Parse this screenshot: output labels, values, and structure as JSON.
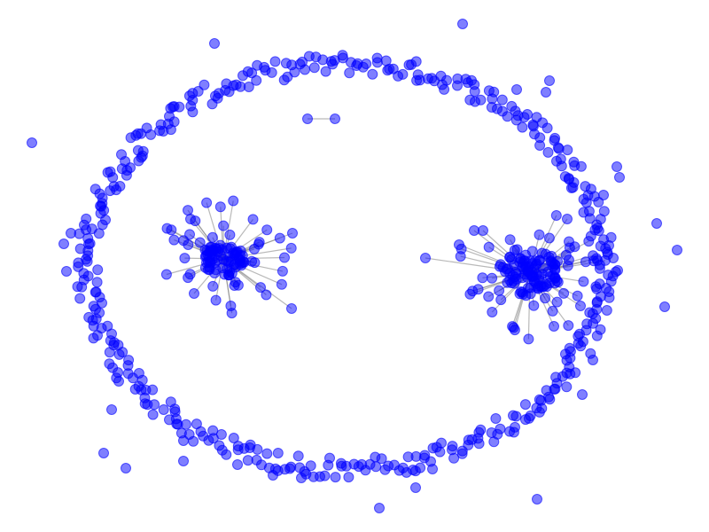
{
  "figure": {
    "type": "network-graph",
    "background": "#ffffff",
    "node_color": "#0000ff",
    "edge_color": "#808080",
    "clusters": [
      {
        "name": "hub-left",
        "hub_spokes": 40,
        "dense_core": 70
      },
      {
        "name": "hub-right",
        "hub_spokes": 46,
        "dense_core": 95
      }
    ],
    "ring_nodes": 420,
    "scattered_nodes": 35,
    "isolated_pairs": 1
  }
}
